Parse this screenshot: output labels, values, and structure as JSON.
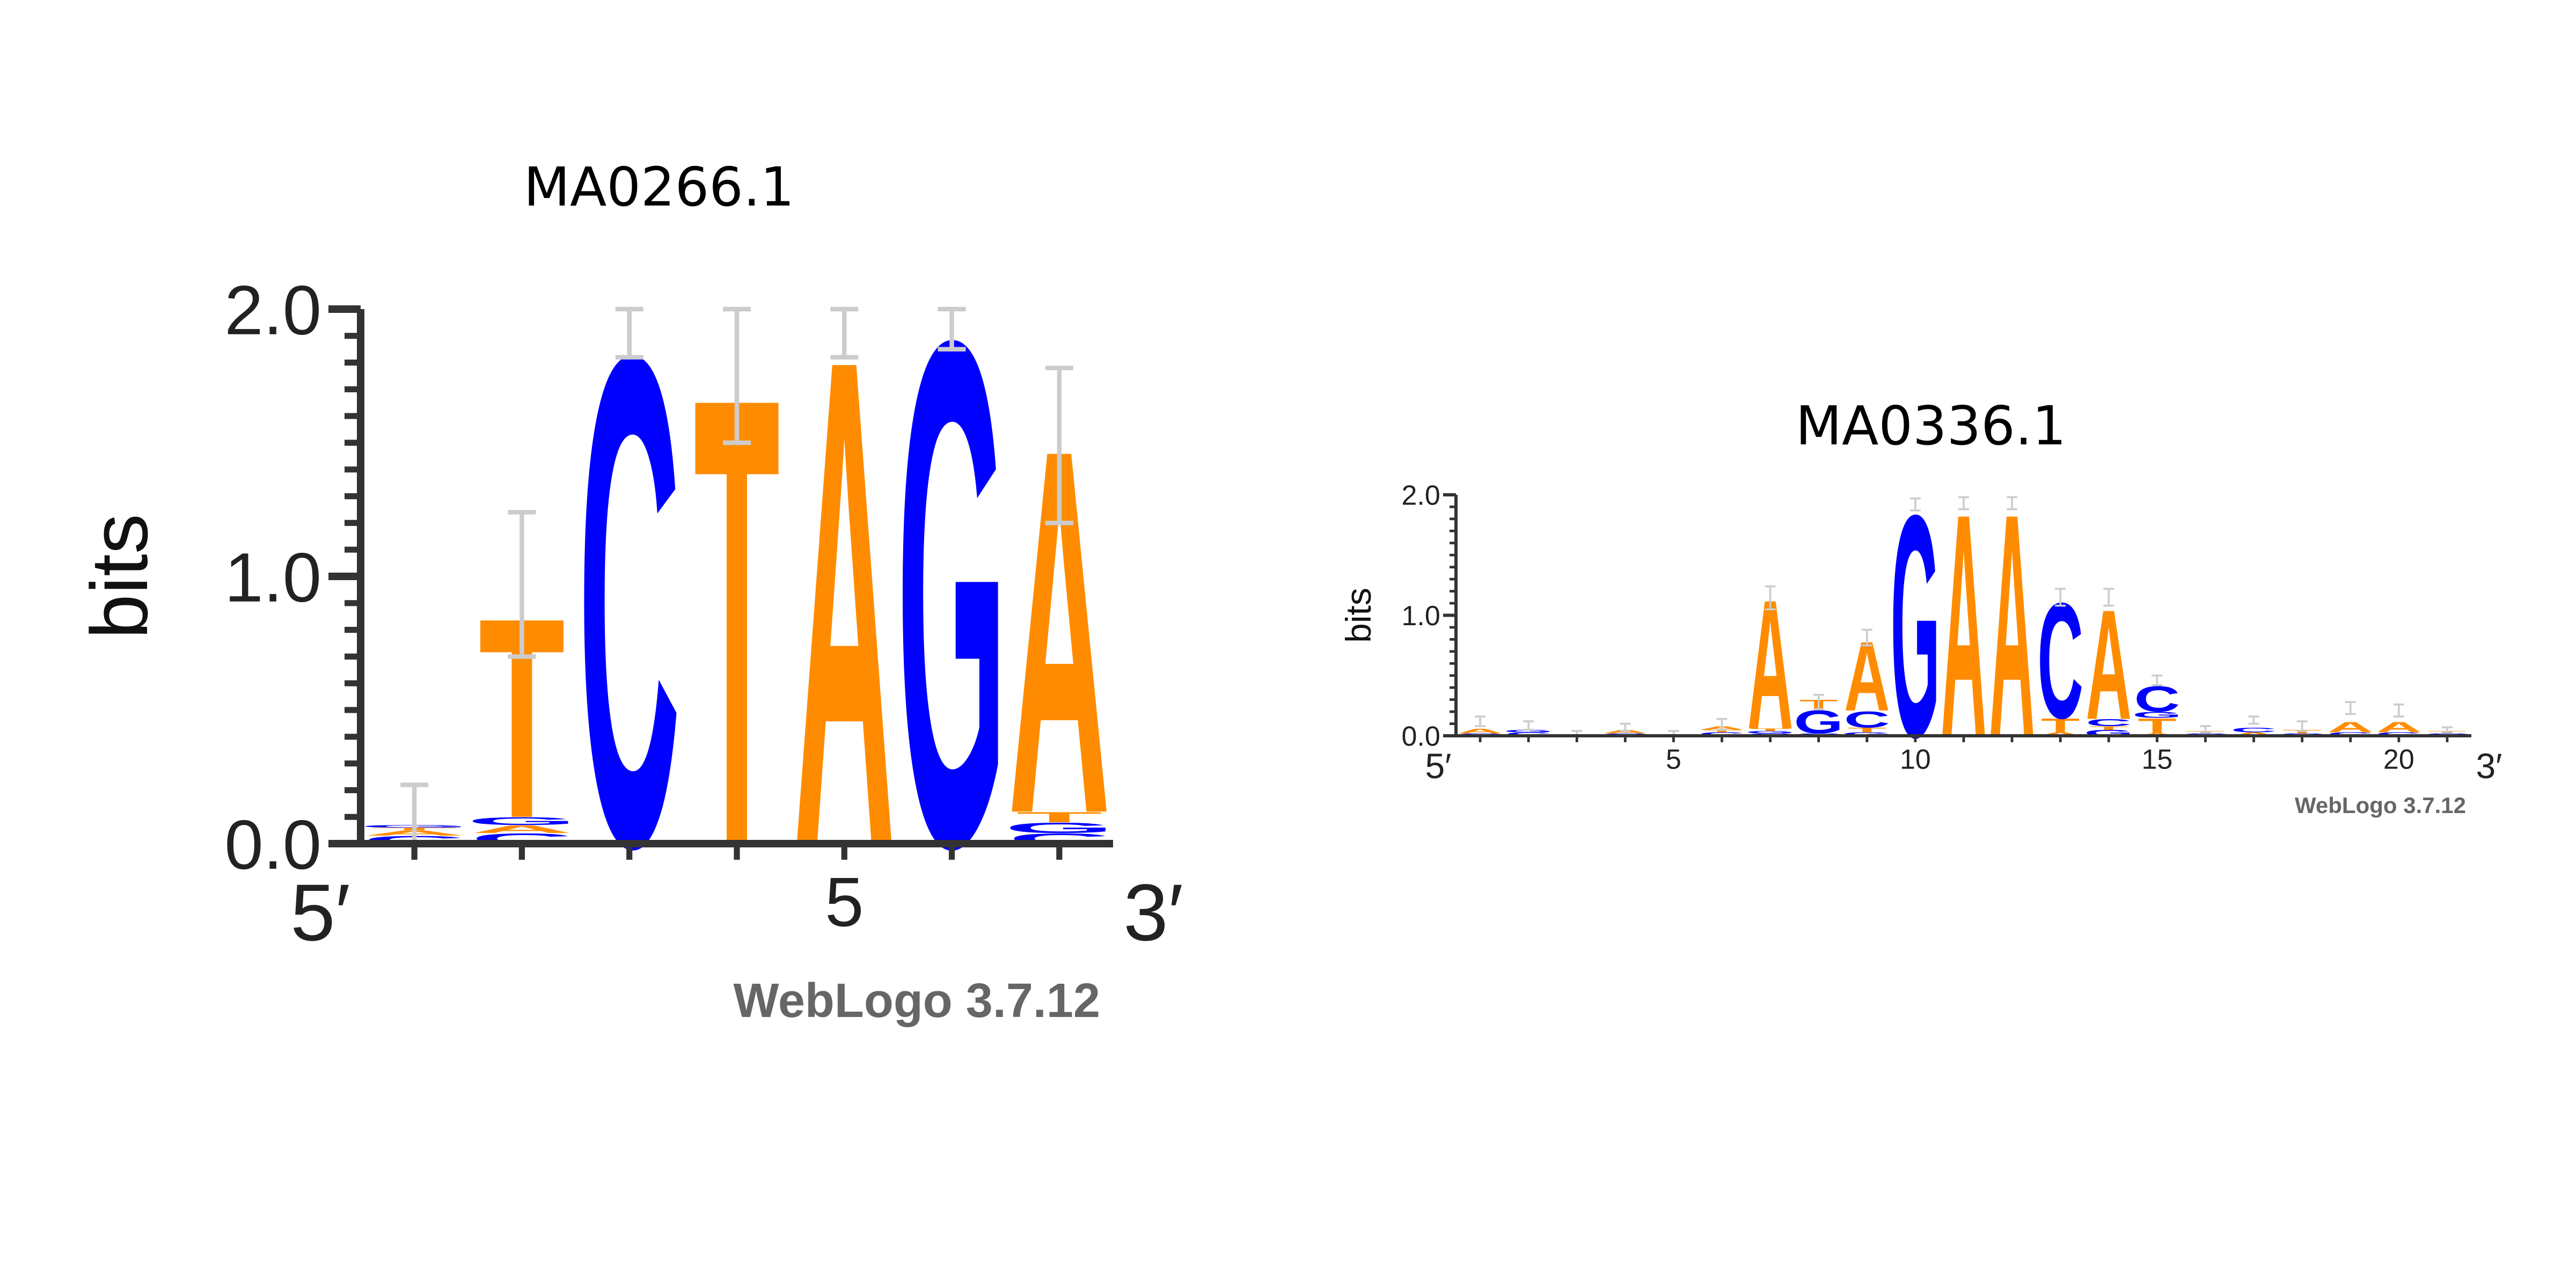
{
  "colors": {
    "A": "#ff8c00",
    "C": "#0000ff",
    "G": "#0000ff",
    "T": "#ff8c00",
    "axis": "#333333",
    "errorbar": "#cccccc",
    "credit": "#666666"
  },
  "chart_data": [
    {
      "type": "sequence-logo",
      "title": "MA0266.1",
      "ylabel": "bits",
      "ylim": [
        0,
        2
      ],
      "yticks": [
        "0.0",
        "1.0",
        "2.0"
      ],
      "x_end_left": "5′",
      "x_end_right": "3′",
      "xtick_positions": [
        5
      ],
      "xtick_labels": [
        "5"
      ],
      "credit": "WebLogo 3.7.12",
      "positions": [
        {
          "pos": 1,
          "letters": [
            [
              "C",
              0.03
            ],
            [
              "A",
              0.02
            ],
            [
              "T",
              0.01
            ],
            [
              "G",
              0.01
            ]
          ],
          "err": [
            0.0,
            0.22
          ]
        },
        {
          "pos": 2,
          "letters": [
            [
              "C",
              0.04
            ],
            [
              "A",
              0.03
            ],
            [
              "G",
              0.03
            ],
            [
              "T",
              0.78
            ]
          ],
          "err": [
            0.7,
            1.24
          ]
        },
        {
          "pos": 3,
          "letters": [
            [
              "C",
              1.91
            ]
          ],
          "err": [
            1.82,
            2.0
          ]
        },
        {
          "pos": 4,
          "letters": [
            [
              "T",
              1.75
            ]
          ],
          "err": [
            1.5,
            2.0
          ]
        },
        {
          "pos": 5,
          "letters": [
            [
              "A",
              1.9
            ]
          ],
          "err": [
            1.82,
            2.0
          ]
        },
        {
          "pos": 6,
          "letters": [
            [
              "G",
              1.97
            ]
          ],
          "err": [
            1.85,
            2.0
          ]
        },
        {
          "pos": 7,
          "letters": [
            [
              "C",
              0.04
            ],
            [
              "G",
              0.04
            ],
            [
              "T",
              0.04
            ],
            [
              "A",
              1.42
            ]
          ],
          "err": [
            1.2,
            1.78
          ]
        }
      ]
    },
    {
      "type": "sequence-logo",
      "title": "MA0336.1",
      "ylabel": "bits",
      "ylim": [
        0,
        2
      ],
      "yticks": [
        "0.0",
        "1.0",
        "2.0"
      ],
      "x_end_left": "5′",
      "x_end_right": "3′",
      "xtick_positions": [
        5,
        10,
        15,
        20
      ],
      "xtick_labels": [
        "5",
        "10",
        "15",
        "20"
      ],
      "credit": "WebLogo 3.7.12",
      "positions": [
        {
          "pos": 1,
          "letters": [
            [
              "C",
              0.02
            ],
            [
              "A",
              0.04
            ]
          ],
          "err": [
            0.08,
            0.16
          ]
        },
        {
          "pos": 2,
          "letters": [
            [
              "C",
              0.03
            ],
            [
              "G",
              0.02
            ]
          ],
          "err": [
            0.05,
            0.12
          ]
        },
        {
          "pos": 3,
          "letters": [
            [
              "C",
              0.01
            ]
          ],
          "err": [
            0.0,
            0.04
          ]
        },
        {
          "pos": 4,
          "letters": [
            [
              "C",
              0.02
            ],
            [
              "A",
              0.03
            ]
          ],
          "err": [
            0.04,
            0.1
          ]
        },
        {
          "pos": 5,
          "letters": [
            [
              "C",
              0.01
            ]
          ],
          "err": [
            0.0,
            0.04
          ]
        },
        {
          "pos": 6,
          "letters": [
            [
              "C",
              0.03
            ],
            [
              "T",
              0.02
            ],
            [
              "A",
              0.03
            ]
          ],
          "err": [
            0.05,
            0.14
          ]
        },
        {
          "pos": 7,
          "letters": [
            [
              "C",
              0.02
            ],
            [
              "G",
              0.02
            ],
            [
              "T",
              0.02
            ],
            [
              "A",
              1.12
            ]
          ],
          "err": [
            1.05,
            1.24
          ]
        },
        {
          "pos": 8,
          "letters": [
            [
              "C",
              0.02
            ],
            [
              "G",
              0.2
            ],
            [
              "T",
              0.08
            ]
          ],
          "err": [
            0.22,
            0.34
          ]
        },
        {
          "pos": 9,
          "letters": [
            [
              "G",
              0.03
            ],
            [
              "T",
              0.04
            ],
            [
              "C",
              0.14
            ],
            [
              "A",
              0.6
            ]
          ],
          "err": [
            0.75,
            0.88
          ]
        },
        {
          "pos": 10,
          "letters": [
            [
              "G",
              1.92
            ]
          ],
          "err": [
            1.87,
            1.97
          ]
        },
        {
          "pos": 11,
          "letters": [
            [
              "A",
              1.93
            ]
          ],
          "err": [
            1.88,
            1.98
          ]
        },
        {
          "pos": 12,
          "letters": [
            [
              "A",
              1.93
            ]
          ],
          "err": [
            1.88,
            1.98
          ]
        },
        {
          "pos": 13,
          "letters": [
            [
              "A",
              0.03
            ],
            [
              "T",
              0.12
            ],
            [
              "C",
              1.0
            ]
          ],
          "err": [
            1.08,
            1.22
          ]
        },
        {
          "pos": 14,
          "letters": [
            [
              "G",
              0.05
            ],
            [
              "T",
              0.03
            ],
            [
              "C",
              0.06
            ],
            [
              "A",
              0.95
            ]
          ],
          "err": [
            1.08,
            1.22
          ]
        },
        {
          "pos": 15,
          "letters": [
            [
              "A",
              0.02
            ],
            [
              "T",
              0.13
            ],
            [
              "G",
              0.05
            ],
            [
              "C",
              0.22
            ]
          ],
          "err": [
            0.42,
            0.5
          ]
        },
        {
          "pos": 16,
          "letters": [
            [
              "C",
              0.02
            ],
            [
              "T",
              0.02
            ]
          ],
          "err": [
            0.03,
            0.08
          ]
        },
        {
          "pos": 17,
          "letters": [
            [
              "A",
              0.03
            ],
            [
              "C",
              0.04
            ]
          ],
          "err": [
            0.1,
            0.16
          ]
        },
        {
          "pos": 18,
          "letters": [
            [
              "C",
              0.02
            ],
            [
              "T",
              0.03
            ]
          ],
          "err": [
            0.04,
            0.12
          ]
        },
        {
          "pos": 19,
          "letters": [
            [
              "C",
              0.03
            ],
            [
              "A",
              0.09
            ]
          ],
          "err": [
            0.18,
            0.28
          ]
        },
        {
          "pos": 20,
          "letters": [
            [
              "C",
              0.03
            ],
            [
              "A",
              0.09
            ]
          ],
          "err": [
            0.16,
            0.26
          ]
        },
        {
          "pos": 21,
          "letters": [
            [
              "C",
              0.02
            ],
            [
              "T",
              0.02
            ]
          ],
          "err": [
            0.03,
            0.07
          ]
        }
      ]
    }
  ]
}
